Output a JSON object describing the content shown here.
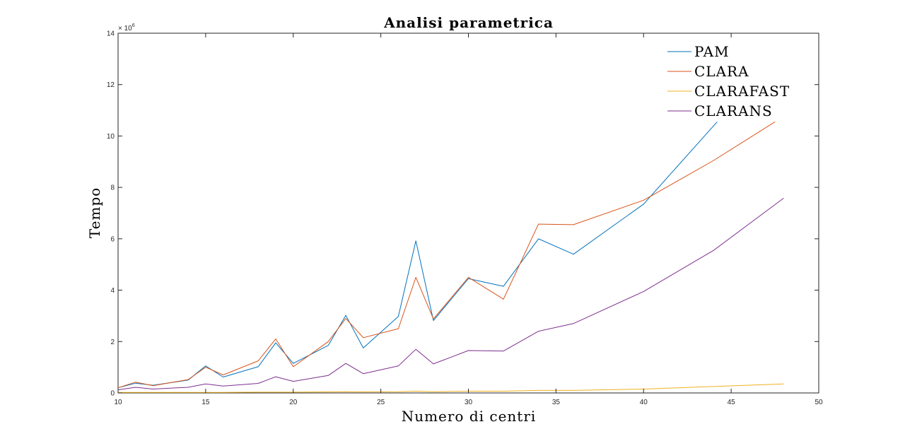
{
  "chart_data": {
    "type": "line",
    "title": "Analisi parametrica",
    "xlabel": "Numero di centri",
    "ylabel": "Tempo",
    "y_exponent_label": "× 10",
    "y_exponent_power": "6",
    "xlim": [
      10,
      50
    ],
    "ylim": [
      0,
      14
    ],
    "y_scale_factor": 1000000,
    "x_ticks": [
      10,
      15,
      20,
      25,
      30,
      35,
      40,
      45,
      50
    ],
    "y_ticks": [
      0,
      2,
      4,
      6,
      8,
      10,
      12,
      14
    ],
    "grid": false,
    "legend_position": "top-right",
    "series": [
      {
        "name": "PAM",
        "color": "#0072BD",
        "points": [
          [
            10,
            0.2
          ],
          [
            11,
            0.38
          ],
          [
            12,
            0.3
          ],
          [
            14,
            0.5
          ],
          [
            15,
            1.05
          ],
          [
            16,
            0.62
          ],
          [
            18,
            1.02
          ],
          [
            19,
            1.95
          ],
          [
            20,
            1.15
          ],
          [
            22,
            1.85
          ],
          [
            23,
            3.02
          ],
          [
            24,
            1.75
          ],
          [
            26,
            2.98
          ],
          [
            27,
            5.92
          ],
          [
            28,
            2.82
          ],
          [
            30,
            4.45
          ],
          [
            32,
            4.15
          ],
          [
            34,
            6.0
          ],
          [
            36,
            5.4
          ],
          [
            40,
            7.35
          ],
          [
            44.2,
            10.55
          ]
        ]
      },
      {
        "name": "CLARA",
        "color": "#D95319",
        "points": [
          [
            10,
            0.2
          ],
          [
            11,
            0.42
          ],
          [
            12,
            0.28
          ],
          [
            14,
            0.52
          ],
          [
            15,
            1.0
          ],
          [
            16,
            0.7
          ],
          [
            18,
            1.25
          ],
          [
            19,
            2.1
          ],
          [
            20,
            1.02
          ],
          [
            22,
            2.0
          ],
          [
            23,
            2.9
          ],
          [
            24,
            2.15
          ],
          [
            26,
            2.5
          ],
          [
            27,
            4.5
          ],
          [
            28,
            2.88
          ],
          [
            30,
            4.5
          ],
          [
            32,
            3.65
          ],
          [
            34,
            6.57
          ],
          [
            36,
            6.55
          ],
          [
            40,
            7.5
          ],
          [
            44,
            9.05
          ],
          [
            47.5,
            10.55
          ]
        ]
      },
      {
        "name": "CLARAFAST",
        "color": "#EDB120",
        "points": [
          [
            10,
            0.02
          ],
          [
            12,
            0.02
          ],
          [
            14,
            0.02
          ],
          [
            15,
            0.02
          ],
          [
            16,
            0.02
          ],
          [
            18,
            0.03
          ],
          [
            19,
            0.03
          ],
          [
            20,
            0.03
          ],
          [
            22,
            0.04
          ],
          [
            23,
            0.05
          ],
          [
            24,
            0.04
          ],
          [
            26,
            0.05
          ],
          [
            27,
            0.07
          ],
          [
            28,
            0.05
          ],
          [
            30,
            0.07
          ],
          [
            32,
            0.07
          ],
          [
            34,
            0.1
          ],
          [
            36,
            0.1
          ],
          [
            40,
            0.15
          ],
          [
            44,
            0.25
          ],
          [
            48,
            0.35
          ]
        ]
      },
      {
        "name": "CLARANS",
        "color": "#7E2F8E",
        "points": [
          [
            10,
            0.12
          ],
          [
            11,
            0.22
          ],
          [
            12,
            0.15
          ],
          [
            14,
            0.22
          ],
          [
            15,
            0.35
          ],
          [
            16,
            0.27
          ],
          [
            18,
            0.37
          ],
          [
            19,
            0.63
          ],
          [
            20,
            0.45
          ],
          [
            22,
            0.68
          ],
          [
            23,
            1.15
          ],
          [
            24,
            0.75
          ],
          [
            26,
            1.05
          ],
          [
            27,
            1.7
          ],
          [
            28,
            1.13
          ],
          [
            30,
            1.65
          ],
          [
            32,
            1.63
          ],
          [
            34,
            2.4
          ],
          [
            36,
            2.7
          ],
          [
            40,
            3.95
          ],
          [
            44,
            5.55
          ],
          [
            48,
            7.58
          ]
        ]
      }
    ]
  }
}
